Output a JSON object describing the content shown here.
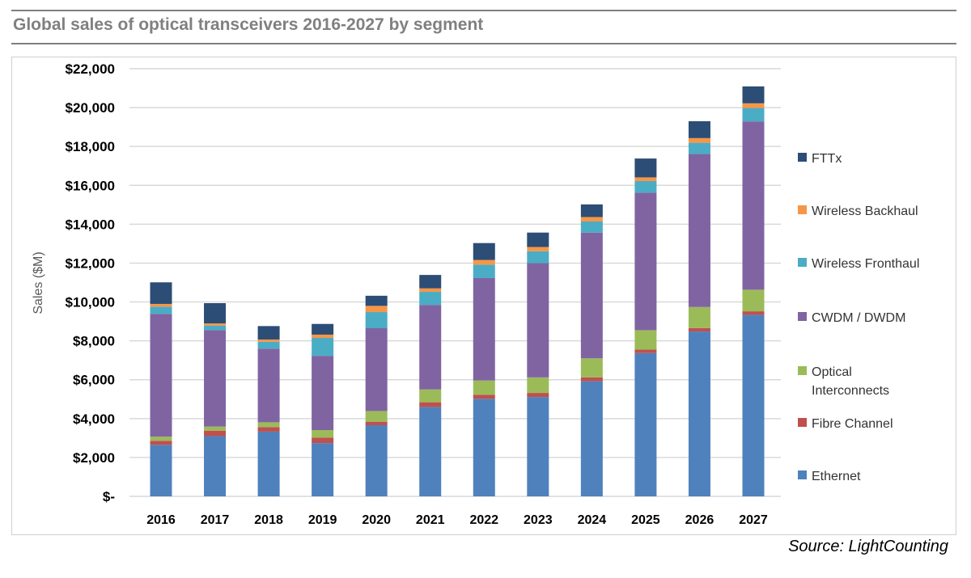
{
  "chart_data": {
    "type": "bar",
    "stacked": true,
    "title": "Global sales of optical transceivers 2016-2027 by segment",
    "ylabel": "Sales ($M)",
    "xlabel": "",
    "ylim": [
      0,
      22000
    ],
    "yticks": [
      0,
      2000,
      4000,
      6000,
      8000,
      10000,
      12000,
      14000,
      16000,
      18000,
      20000,
      22000
    ],
    "ytick_labels": [
      "$-",
      "$2,000",
      "$4,000",
      "$6,000",
      "$8,000",
      "$10,000",
      "$12,000",
      "$14,000",
      "$16,000",
      "$18,000",
      "$20,000",
      "$22,000"
    ],
    "grid": true,
    "legend_position": "right",
    "categories": [
      "2016",
      "2017",
      "2018",
      "2019",
      "2020",
      "2021",
      "2022",
      "2023",
      "2024",
      "2025",
      "2026",
      "2027"
    ],
    "series": [
      {
        "name": "Ethernet",
        "color": "#4F81BD",
        "values": [
          2650,
          3100,
          3330,
          2740,
          3660,
          4600,
          5020,
          5110,
          5920,
          7370,
          8480,
          9340
        ]
      },
      {
        "name": "Fibre Channel",
        "color": "#C0504D",
        "values": [
          210,
          280,
          230,
          280,
          180,
          240,
          210,
          210,
          200,
          180,
          180,
          180
        ]
      },
      {
        "name": "Optical Interconnects",
        "color": "#9BBB59",
        "values": [
          210,
          210,
          250,
          390,
          550,
          660,
          730,
          800,
          980,
          1000,
          1080,
          1110
        ]
      },
      {
        "name": "CWDM / DWDM",
        "color": "#8064A2",
        "values": [
          6320,
          4960,
          3790,
          3820,
          4260,
          4350,
          5270,
          5880,
          6470,
          7070,
          7870,
          8660
        ]
      },
      {
        "name": "Wireless Fronthaul",
        "color": "#4BACC6",
        "values": [
          370,
          240,
          350,
          920,
          830,
          670,
          690,
          610,
          570,
          600,
          580,
          690
        ]
      },
      {
        "name": "Wireless Backhaul",
        "color": "#F79646",
        "values": [
          140,
          110,
          120,
          170,
          320,
          180,
          240,
          220,
          230,
          190,
          240,
          240
        ]
      },
      {
        "name": "FTTx",
        "color": "#2C4D75",
        "values": [
          1110,
          1040,
          690,
          550,
          520,
          690,
          870,
          740,
          650,
          970,
          870,
          870
        ]
      }
    ],
    "legend_order": [
      "FTTx",
      "Wireless Backhaul",
      "Wireless Fronthaul",
      "CWDM / DWDM",
      "Optical Interconnects",
      "Fibre Channel",
      "Ethernet"
    ],
    "legend_labels": {
      "Optical Interconnects": [
        "Optical",
        "Interconnects"
      ]
    }
  },
  "source": "Source: LightCounting"
}
